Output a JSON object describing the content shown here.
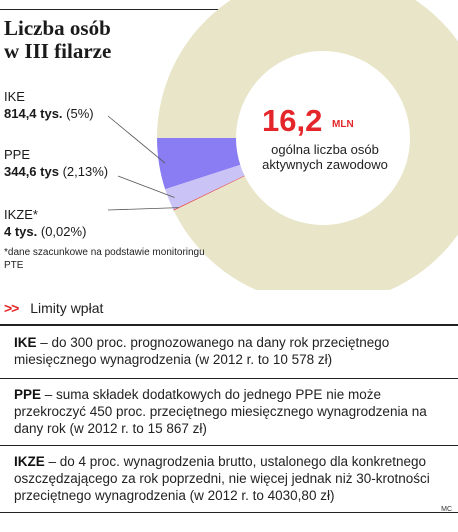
{
  "title": "Liczba osób\nw III filarze",
  "center": {
    "value": "16,2",
    "unit": "MLN",
    "subtitle": "ogólna liczba osób aktywnych zawodowo"
  },
  "chart_data": {
    "type": "pie",
    "donut": true,
    "total_label": "16,2 MLN",
    "slices": [
      {
        "name": "IKE",
        "value_label": "814,4 tys.",
        "share_label": "(5%)",
        "percent": 5.0,
        "color": "#8a7cf3"
      },
      {
        "name": "PPE",
        "value_label": "344,6 tys",
        "share_label": "(2,13%)",
        "percent": 2.13,
        "color": "#c9c4f5"
      },
      {
        "name": "IKZE*",
        "value_label": "4 tys.",
        "share_label": "(0,02%)",
        "percent": 0.02,
        "color": "#e4262a"
      }
    ],
    "rest_color": "#e8e5c8"
  },
  "footnote": "*dane szacunkowe na podstawie monitoringu PTE",
  "limits": {
    "heading": "Limity wpłat",
    "marker": ">>",
    "items": [
      {
        "name": "IKE",
        "text": " – do 300 proc. prognozowanego na dany rok przeciętnego miesięcznego wynagrodzenia (w 2012 r. to 10 578 zł)"
      },
      {
        "name": "PPE",
        "text": " – suma składek dodatkowych do jednego PPE nie może przekroczyć 450 proc. przeciętnego miesięcznego wynagrodzenia na dany rok (w 2012 r. to 15 867 zł)"
      },
      {
        "name": "IKZE",
        "text": " – do 4 proc. wynagrodzenia brutto, ustalonego dla konkretnego oszczędzającego za rok poprzedni, nie więcej jednak niż 30-krotności przeciętnego wynagrodzenia (w 2012 r. to 4030,80 zł)"
      }
    ]
  },
  "credit": "MC"
}
